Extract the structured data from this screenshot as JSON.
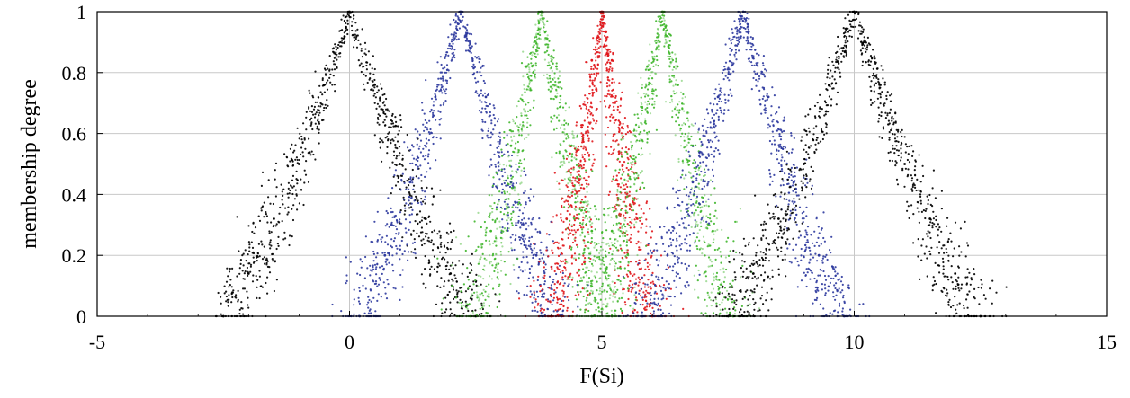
{
  "chart_data": {
    "type": "scatter",
    "title": "",
    "xlabel": "F(Si)",
    "ylabel": "membership degree",
    "xlim": [
      -5,
      15
    ],
    "ylim": [
      0,
      1
    ],
    "x_ticks": [
      -5,
      0,
      5,
      10,
      15
    ],
    "x_tick_labels": [
      "-5",
      "0",
      "5",
      "10",
      "15"
    ],
    "y_ticks": [
      0,
      0.2,
      0.4,
      0.6,
      0.8,
      1
    ],
    "y_tick_labels": [
      "0",
      "0.2",
      "0.4",
      "0.6",
      "0.8",
      "1"
    ],
    "grid": true,
    "series": [
      {
        "color": "#000000",
        "center": 0,
        "support": [
          -2.5,
          2.5
        ],
        "points": [
          [
            -2.5,
            0
          ],
          [
            -2.0,
            0.14
          ],
          [
            -1.5,
            0.32
          ],
          [
            -1.0,
            0.5
          ],
          [
            -0.5,
            0.76
          ],
          [
            0,
            1
          ],
          [
            0.5,
            0.76
          ],
          [
            1.0,
            0.5
          ],
          [
            1.5,
            0.32
          ],
          [
            2.0,
            0.14
          ],
          [
            2.5,
            0
          ]
        ]
      },
      {
        "color": "#2e3a9e",
        "center": 2.2,
        "support": [
          0.2,
          4.2
        ],
        "points": [
          [
            0.2,
            0
          ],
          [
            0.7,
            0.2
          ],
          [
            1.2,
            0.44
          ],
          [
            1.7,
            0.72
          ],
          [
            2.2,
            1
          ],
          [
            2.7,
            0.72
          ],
          [
            3.2,
            0.44
          ],
          [
            3.7,
            0.2
          ],
          [
            4.2,
            0
          ]
        ]
      },
      {
        "color": "#3fb62b",
        "center": 3.8,
        "support": [
          2.4,
          5.2
        ],
        "points": [
          [
            2.4,
            0
          ],
          [
            2.8,
            0.28
          ],
          [
            3.2,
            0.56
          ],
          [
            3.5,
            0.82
          ],
          [
            3.8,
            1
          ],
          [
            4.1,
            0.82
          ],
          [
            4.4,
            0.56
          ],
          [
            4.8,
            0.28
          ],
          [
            5.2,
            0
          ]
        ]
      },
      {
        "color": "#e0161b",
        "center": 5,
        "support": [
          4.0,
          6.0
        ],
        "points": [
          [
            4.0,
            0
          ],
          [
            4.3,
            0.32
          ],
          [
            4.6,
            0.62
          ],
          [
            4.8,
            0.84
          ],
          [
            5.0,
            1
          ],
          [
            5.2,
            0.84
          ],
          [
            5.4,
            0.62
          ],
          [
            5.7,
            0.32
          ],
          [
            6.0,
            0
          ]
        ]
      },
      {
        "color": "#3fb62b",
        "center": 6.2,
        "support": [
          4.8,
          7.6
        ],
        "points": [
          [
            4.8,
            0
          ],
          [
            5.2,
            0.28
          ],
          [
            5.6,
            0.56
          ],
          [
            5.9,
            0.82
          ],
          [
            6.2,
            1
          ],
          [
            6.5,
            0.82
          ],
          [
            6.8,
            0.56
          ],
          [
            7.2,
            0.28
          ],
          [
            7.6,
            0
          ]
        ]
      },
      {
        "color": "#2e3a9e",
        "center": 7.8,
        "support": [
          5.8,
          9.8
        ],
        "points": [
          [
            5.8,
            0
          ],
          [
            6.3,
            0.2
          ],
          [
            6.8,
            0.44
          ],
          [
            7.3,
            0.72
          ],
          [
            7.8,
            1
          ],
          [
            8.3,
            0.72
          ],
          [
            8.8,
            0.44
          ],
          [
            9.3,
            0.2
          ],
          [
            9.8,
            0
          ]
        ]
      },
      {
        "color": "#000000",
        "center": 10,
        "support": [
          7.5,
          12.5
        ],
        "points": [
          [
            7.5,
            0
          ],
          [
            8.0,
            0.14
          ],
          [
            8.5,
            0.32
          ],
          [
            9.0,
            0.5
          ],
          [
            9.5,
            0.76
          ],
          [
            10,
            1
          ],
          [
            10.5,
            0.76
          ],
          [
            11.0,
            0.5
          ],
          [
            11.5,
            0.32
          ],
          [
            12.0,
            0.14
          ],
          [
            12.5,
            0
          ]
        ]
      }
    ]
  }
}
